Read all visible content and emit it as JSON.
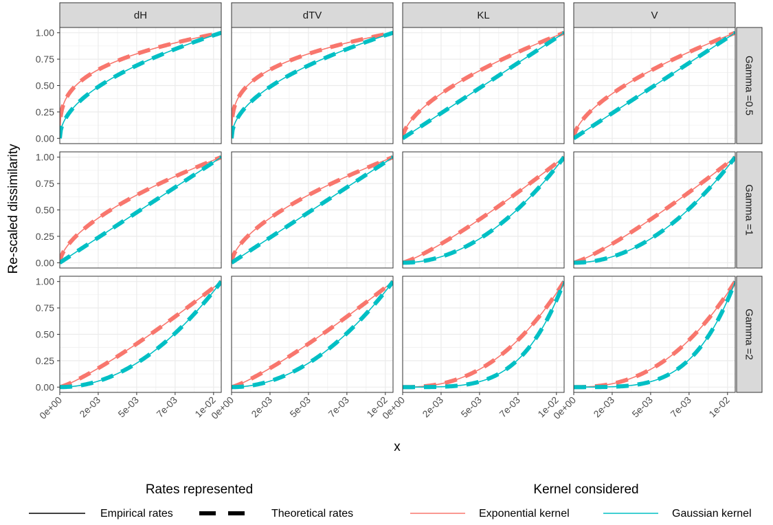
{
  "chart_data": {
    "type": "line",
    "facet_columns": [
      "dH",
      "dTV",
      "KL",
      "V"
    ],
    "facet_rows": [
      "Gamma =0.5",
      "Gamma =1",
      "Gamma =2"
    ],
    "xlabel": "x",
    "ylabel": "Re-scaled dissimilarity",
    "xlim": [
      0,
      0.0105
    ],
    "ylim": [
      -0.05,
      1.05
    ],
    "x_ticks": [
      0,
      0.0025,
      0.005,
      0.0075,
      0.01
    ],
    "x_tick_labels": [
      "0e+00",
      "2e-03",
      "5e-03",
      "7e-03",
      "1e-02"
    ],
    "y_ticks": [
      0,
      0.25,
      0.5,
      0.75,
      1
    ],
    "y_tick_labels": [
      "0.00",
      "0.25",
      "0.50",
      "0.75",
      "1.00"
    ],
    "grid": true,
    "x_max": 0.0105,
    "legends": [
      {
        "title": "Rates represented",
        "entries": [
          {
            "label": "Empirical rates",
            "linetype": "solid"
          },
          {
            "label": "Theoretical rates",
            "linetype": "dashed"
          }
        ]
      },
      {
        "title": "Kernel considered",
        "entries": [
          {
            "label": "Exponential kernel",
            "color": "#F8766D"
          },
          {
            "label": "Gaussian kernel",
            "color": "#00BFC4"
          }
        ]
      }
    ],
    "series": [
      {
        "name": "Exponential kernel",
        "color": "#F8766D",
        "exponents": [
          [
            0.3,
            0.3,
            0.6,
            0.6
          ],
          [
            0.6,
            0.6,
            1.2,
            1.2
          ],
          [
            1.2,
            1.2,
            2.4,
            2.4
          ]
        ]
      },
      {
        "name": "Gaussian kernel",
        "color": "#00BFC4",
        "exponents": [
          [
            0.5,
            0.5,
            1.0,
            1.0
          ],
          [
            1.0,
            1.0,
            2.0,
            2.0
          ],
          [
            2.0,
            2.0,
            4.0,
            4.0
          ]
        ]
      }
    ]
  }
}
